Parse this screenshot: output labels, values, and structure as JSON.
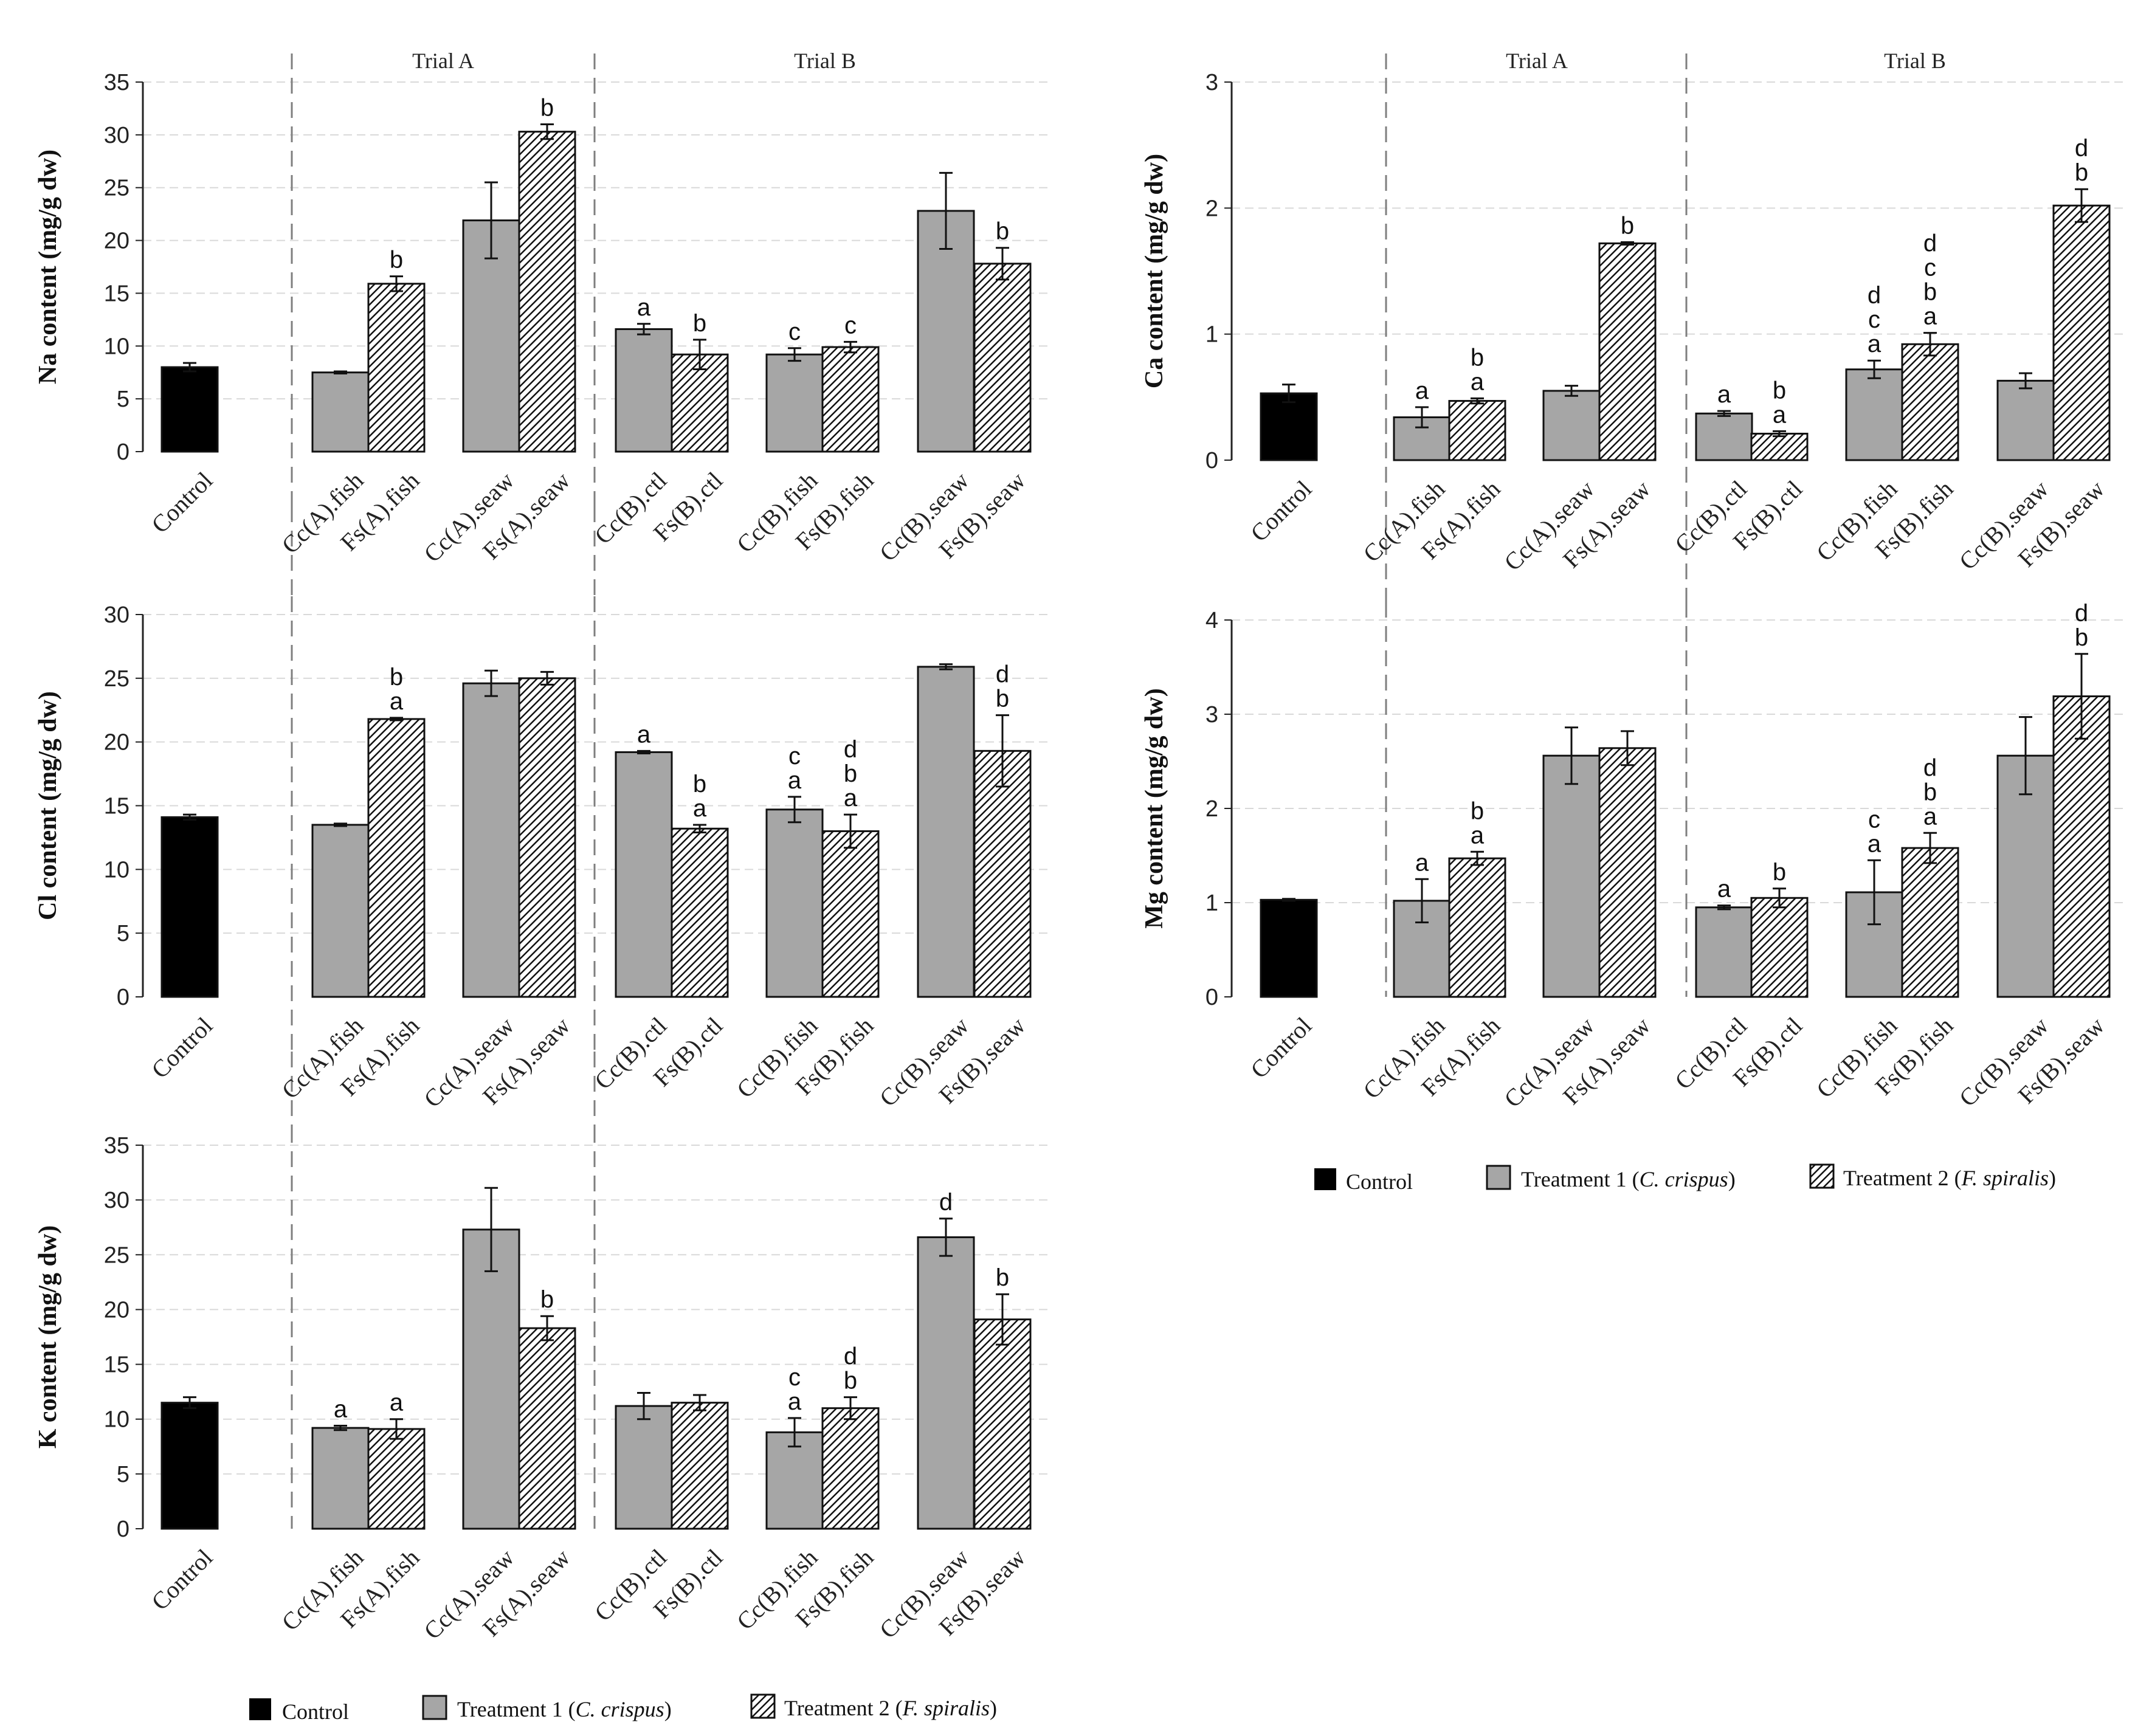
{
  "colors": {
    "control": "#000000",
    "treatment1": "#a6a6a6",
    "treatment2_hatch": "#111111",
    "grid": "#d9d9d9",
    "divider": "#7f7f7f"
  },
  "legend": {
    "control": "Control",
    "t1_prefix": "Treatment 1 (",
    "t1_species": "C. crispus",
    "t2_prefix": "Treatment 2 (",
    "t2_species": "F. spiralis",
    "suffix": ")"
  },
  "chart_data": [
    {
      "type": "bar",
      "ylabel": "Na content (mg/g dw)",
      "ylim": [
        0,
        35
      ],
      "yticks": [
        0,
        5,
        10,
        15,
        20,
        25,
        30,
        35
      ],
      "sections": [
        "Trial A",
        "Trial B"
      ],
      "categories": [
        "Control",
        "Cc(A).fish",
        "Fs(A).fish",
        "Cc(A).seaw",
        "Fs(A).seaw",
        "Cc(B).ctl",
        "Fs(B).ctl",
        "Cc(B).fish",
        "Fs(B).fish",
        "Cc(B).seaw",
        "Fs(B).seaw"
      ],
      "series": [
        {
          "name": "Control",
          "values": [
            8.0,
            null,
            null,
            null,
            null,
            null,
            null,
            null,
            null,
            null,
            null
          ]
        },
        {
          "name": "Treatment 1 (C. crispus)",
          "values": [
            null,
            7.5,
            null,
            21.9,
            null,
            11.6,
            null,
            9.2,
            null,
            22.8,
            null
          ]
        },
        {
          "name": "Treatment 2 (F. spiralis)",
          "values": [
            null,
            null,
            15.9,
            null,
            30.3,
            null,
            9.2,
            null,
            9.9,
            null,
            17.8
          ]
        }
      ],
      "errors": [
        0.4,
        0.1,
        0.7,
        3.6,
        0.7,
        0.5,
        1.4,
        0.6,
        0.5,
        3.6,
        1.5
      ],
      "annotations": [
        [],
        [],
        [
          "b"
        ],
        [],
        [
          "b"
        ],
        [
          "a"
        ],
        [
          "b"
        ],
        [
          "c"
        ],
        [
          "c"
        ],
        [],
        [
          "b"
        ]
      ]
    },
    {
      "type": "bar",
      "ylabel": "Cl content (mg/g dw)",
      "ylim": [
        0,
        30
      ],
      "yticks": [
        0,
        5,
        10,
        15,
        20,
        25,
        30
      ],
      "sections": [
        "Trial A",
        "Trial B"
      ],
      "categories": [
        "Control",
        "Cc(A).fish",
        "Fs(A).fish",
        "Cc(A).seaw",
        "Fs(A).seaw",
        "Cc(B).ctl",
        "Fs(B).ctl",
        "Cc(B).fish",
        "Fs(B).fish",
        "Cc(B).seaw",
        "Fs(B).seaw"
      ],
      "series": [
        {
          "name": "Control",
          "values": [
            14.1,
            null,
            null,
            null,
            null,
            null,
            null,
            null,
            null,
            null,
            null
          ]
        },
        {
          "name": "Treatment 1 (C. crispus)",
          "values": [
            null,
            13.5,
            null,
            24.6,
            null,
            19.2,
            null,
            14.7,
            null,
            25.9,
            null
          ]
        },
        {
          "name": "Treatment 2 (F. spiralis)",
          "values": [
            null,
            null,
            21.8,
            null,
            25.0,
            null,
            13.2,
            null,
            13.0,
            null,
            19.3
          ]
        }
      ],
      "errors": [
        0.2,
        0.1,
        0.1,
        1.0,
        0.5,
        0.1,
        0.3,
        1.0,
        1.3,
        0.2,
        2.8
      ],
      "annotations": [
        [],
        [],
        [
          "b",
          "a"
        ],
        [],
        [],
        [
          "a"
        ],
        [
          "b",
          "a"
        ],
        [
          "c",
          "a"
        ],
        [
          "d",
          "b",
          "a"
        ],
        [],
        [
          "d",
          "b"
        ]
      ]
    },
    {
      "type": "bar",
      "ylabel": "K content (mg/g dw)",
      "ylim": [
        0,
        35
      ],
      "yticks": [
        0,
        5,
        10,
        15,
        20,
        25,
        30,
        35
      ],
      "sections": [
        "Trial A",
        "Trial B"
      ],
      "categories": [
        "Control",
        "Cc(A).fish",
        "Fs(A).fish",
        "Cc(A).seaw",
        "Fs(A).seaw",
        "Cc(B).ctl",
        "Fs(B).ctl",
        "Cc(B).fish",
        "Fs(B).fish",
        "Cc(B).seaw",
        "Fs(B).seaw"
      ],
      "series": [
        {
          "name": "Control",
          "values": [
            11.5,
            null,
            null,
            null,
            null,
            null,
            null,
            null,
            null,
            null,
            null
          ]
        },
        {
          "name": "Treatment 1 (C. crispus)",
          "values": [
            null,
            9.2,
            null,
            27.3,
            null,
            11.2,
            null,
            8.8,
            null,
            26.6,
            null
          ]
        },
        {
          "name": "Treatment 2 (F. spiralis)",
          "values": [
            null,
            null,
            9.1,
            null,
            18.3,
            null,
            11.5,
            null,
            11.0,
            null,
            19.1
          ]
        }
      ],
      "errors": [
        0.5,
        0.2,
        0.9,
        3.8,
        1.1,
        1.2,
        0.7,
        1.3,
        1.0,
        1.7,
        2.3
      ],
      "annotations": [
        [],
        [
          "a"
        ],
        [
          "a"
        ],
        [],
        [
          "b"
        ],
        [],
        [],
        [
          "c",
          "a"
        ],
        [
          "d",
          "b"
        ],
        [
          "d"
        ],
        [
          "b"
        ]
      ]
    },
    {
      "type": "bar",
      "ylabel": "Ca content (mg/g dw)",
      "ylim": [
        0,
        3
      ],
      "yticks": [
        0,
        1,
        2,
        3
      ],
      "sections": [
        "Trial A",
        "Trial B"
      ],
      "categories": [
        "Control",
        "Cc(A).fish",
        "Fs(A).fish",
        "Cc(A).seaw",
        "Fs(A).seaw",
        "Cc(B).ctl",
        "Fs(B).ctl",
        "Cc(B).fish",
        "Fs(B).fish",
        "Cc(B).seaw",
        "Fs(B).seaw"
      ],
      "series": [
        {
          "name": "Control",
          "values": [
            0.53,
            null,
            null,
            null,
            null,
            null,
            null,
            null,
            null,
            null,
            null
          ]
        },
        {
          "name": "Treatment 1 (C. crispus)",
          "values": [
            null,
            0.34,
            null,
            0.55,
            null,
            0.37,
            null,
            0.72,
            null,
            0.63,
            null
          ]
        },
        {
          "name": "Treatment 2 (F. spiralis)",
          "values": [
            null,
            null,
            0.47,
            null,
            1.72,
            null,
            0.21,
            null,
            0.92,
            null,
            2.02
          ]
        }
      ],
      "errors": [
        0.07,
        0.08,
        0.02,
        0.04,
        0.01,
        0.02,
        0.02,
        0.07,
        0.09,
        0.06,
        0.13
      ],
      "annotations": [
        [],
        [
          "a"
        ],
        [
          "b",
          "a"
        ],
        [],
        [
          "b"
        ],
        [
          "a"
        ],
        [
          "b",
          "a"
        ],
        [
          "d",
          "c",
          "a"
        ],
        [
          "d",
          "c",
          "b",
          "a"
        ],
        [],
        [
          "d",
          "b"
        ]
      ]
    },
    {
      "type": "bar",
      "ylabel": "Mg content (mg/g dw)",
      "ylim": [
        0,
        4
      ],
      "yticks": [
        0,
        1,
        2,
        3,
        4
      ],
      "sections": [
        "Trial A",
        "Trial B"
      ],
      "categories": [
        "Control",
        "Cc(A).fish",
        "Fs(A).fish",
        "Cc(A).seaw",
        "Fs(A).seaw",
        "Cc(B).ctl",
        "Fs(B).ctl",
        "Cc(B).fish",
        "Fs(B).fish",
        "Cc(B).seaw",
        "Fs(B).seaw"
      ],
      "series": [
        {
          "name": "Control",
          "values": [
            1.03,
            null,
            null,
            null,
            null,
            null,
            null,
            null,
            null,
            null,
            null
          ]
        },
        {
          "name": "Treatment 1 (C. crispus)",
          "values": [
            null,
            1.02,
            null,
            2.56,
            null,
            0.95,
            null,
            1.11,
            null,
            2.56,
            null
          ]
        },
        {
          "name": "Treatment 2 (F. spiralis)",
          "values": [
            null,
            null,
            1.47,
            null,
            2.64,
            null,
            1.05,
            null,
            1.58,
            null,
            3.19
          ]
        }
      ],
      "errors": [
        0.01,
        0.23,
        0.07,
        0.3,
        0.18,
        0.02,
        0.1,
        0.34,
        0.16,
        0.41,
        0.45
      ],
      "annotations": [
        [],
        [
          "a"
        ],
        [
          "b",
          "a"
        ],
        [],
        [],
        [
          "a"
        ],
        [
          "b"
        ],
        [
          "c",
          "a"
        ],
        [
          "d",
          "b",
          "a"
        ],
        [],
        [
          "d",
          "b"
        ]
      ]
    }
  ]
}
